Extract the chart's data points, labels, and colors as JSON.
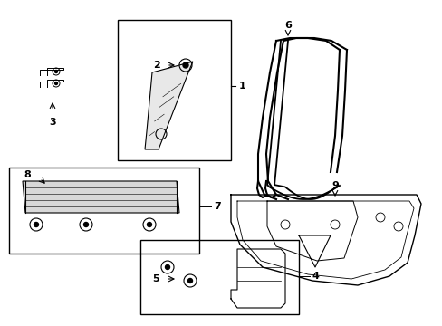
{
  "fig_width": 4.89,
  "fig_height": 3.6,
  "dpi": 100,
  "bg_color": "#ffffff",
  "line_color": "#000000",
  "gray_color": "#888888",
  "light_gray": "#cccccc"
}
